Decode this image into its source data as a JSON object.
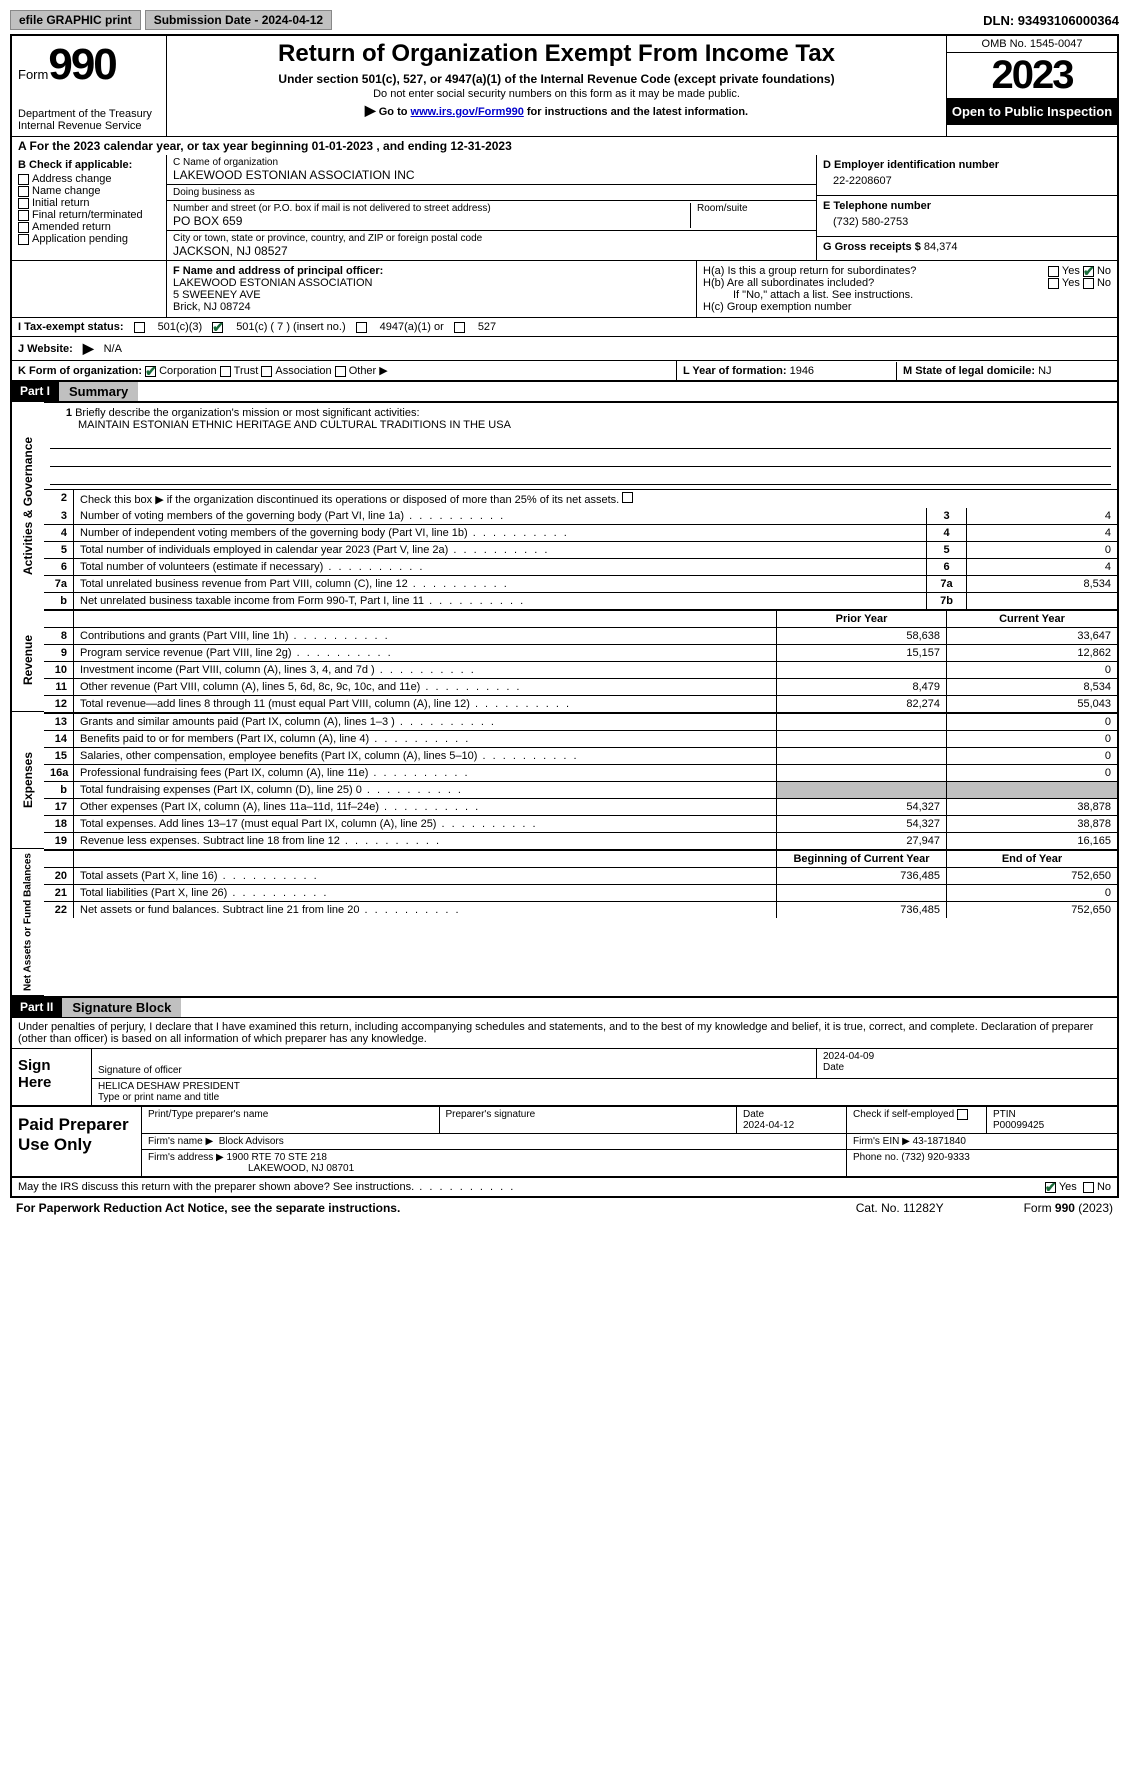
{
  "topbar": {
    "efile": "efile GRAPHIC print",
    "submission": "Submission Date - 2024-04-12",
    "dln": "DLN: 93493106000364"
  },
  "header": {
    "form_label": "Form",
    "form_num": "990",
    "dept": "Department of the Treasury\nInternal Revenue Service",
    "title": "Return of Organization Exempt From Income Tax",
    "sub": "Under section 501(c), 527, or 4947(a)(1) of the Internal Revenue Code (except private foundations)",
    "note1": "Do not enter social security numbers on this form as it may be made public.",
    "note2_pre": "Go to ",
    "note2_link": "www.irs.gov/Form990",
    "note2_post": " for instructions and the latest information.",
    "omb": "OMB No. 1545-0047",
    "year": "2023",
    "open": "Open to Public Inspection"
  },
  "sectionA": "A For the 2023 calendar year, or tax year beginning 01-01-2023    , and ending 12-31-2023",
  "boxB": {
    "hdr": "B Check if applicable:",
    "items": [
      "Address change",
      "Name change",
      "Initial return",
      "Final return/terminated",
      "Amended return",
      "Application pending"
    ]
  },
  "boxC": {
    "name_lbl": "C Name of organization",
    "name": "LAKEWOOD ESTONIAN ASSOCIATION INC",
    "dba_lbl": "Doing business as",
    "dba": "",
    "addr_lbl": "Number and street (or P.O. box if mail is not delivered to street address)",
    "room_lbl": "Room/suite",
    "addr": "PO BOX 659",
    "city_lbl": "City or town, state or province, country, and ZIP or foreign postal code",
    "city": "JACKSON, NJ  08527"
  },
  "boxD": {
    "lbl": "D Employer identification number",
    "val": "22-2208607"
  },
  "boxE": {
    "lbl": "E Telephone number",
    "val": "(732) 580-2753"
  },
  "boxG": {
    "lbl": "G Gross receipts $",
    "val": "84,374"
  },
  "boxF": {
    "lbl": "F  Name and address of principal officer:",
    "name": "LAKEWOOD ESTONIAN ASSOCIATION",
    "addr1": "5 SWEENEY AVE",
    "addr2": "Brick, NJ  08724"
  },
  "boxH": {
    "a": "H(a)  Is this a group return for subordinates?",
    "b": "H(b)  Are all subordinates included?",
    "b_note": "If \"No,\" attach a list. See instructions.",
    "c": "H(c)  Group exemption number ",
    "yes": "Yes",
    "no": "No"
  },
  "boxI": {
    "lbl": "I   Tax-exempt status:",
    "c3": "501(c)(3)",
    "c": "501(c) ( 7 ) (insert no.)",
    "a1": "4947(a)(1) or",
    "s527": "527"
  },
  "boxJ": {
    "lbl": "J   Website:",
    "arrow": "▶",
    "val": "N/A"
  },
  "boxK": {
    "lbl": "K Form of organization:",
    "corp": "Corporation",
    "trust": "Trust",
    "assoc": "Association",
    "other": "Other ▶"
  },
  "boxL": {
    "lbl": "L Year of formation:",
    "val": "1946"
  },
  "boxM": {
    "lbl": "M State of legal domicile:",
    "val": "NJ"
  },
  "part1": {
    "num": "Part I",
    "title": "Summary"
  },
  "gov": {
    "label": "Activities & Governance",
    "l1": "Briefly describe the organization's mission or most significant activities:",
    "mission": "MAINTAIN ESTONIAN ETHNIC HERITAGE AND CULTURAL TRADITIONS IN THE USA",
    "l2": "Check this box ▶          if the organization discontinued its operations or disposed of more than 25% of its net assets.",
    "lines": [
      {
        "n": "3",
        "d": "Number of voting members of the governing body (Part VI, line 1a)",
        "box": "3",
        "v": "4"
      },
      {
        "n": "4",
        "d": "Number of independent voting members of the governing body (Part VI, line 1b)",
        "box": "4",
        "v": "4"
      },
      {
        "n": "5",
        "d": "Total number of individuals employed in calendar year 2023 (Part V, line 2a)",
        "box": "5",
        "v": "0"
      },
      {
        "n": "6",
        "d": "Total number of volunteers (estimate if necessary)",
        "box": "6",
        "v": "4"
      },
      {
        "n": "7a",
        "d": "Total unrelated business revenue from Part VIII, column (C), line 12",
        "box": "7a",
        "v": "8,534"
      },
      {
        "n": "b",
        "d": "Net unrelated business taxable income from Form 990-T, Part I, line 11",
        "box": "7b",
        "v": ""
      }
    ]
  },
  "rev": {
    "label": "Revenue",
    "hdr_prior": "Prior Year",
    "hdr_curr": "Current Year",
    "lines": [
      {
        "n": "8",
        "d": "Contributions and grants (Part VIII, line 1h)",
        "p": "58,638",
        "c": "33,647"
      },
      {
        "n": "9",
        "d": "Program service revenue (Part VIII, line 2g)",
        "p": "15,157",
        "c": "12,862"
      },
      {
        "n": "10",
        "d": "Investment income (Part VIII, column (A), lines 3, 4, and 7d )",
        "p": "",
        "c": "0"
      },
      {
        "n": "11",
        "d": "Other revenue (Part VIII, column (A), lines 5, 6d, 8c, 9c, 10c, and 11e)",
        "p": "8,479",
        "c": "8,534"
      },
      {
        "n": "12",
        "d": "Total revenue—add lines 8 through 11 (must equal Part VIII, column (A), line 12)",
        "p": "82,274",
        "c": "55,043"
      }
    ]
  },
  "exp": {
    "label": "Expenses",
    "lines": [
      {
        "n": "13",
        "d": "Grants and similar amounts paid (Part IX, column (A), lines 1–3 )",
        "p": "",
        "c": "0"
      },
      {
        "n": "14",
        "d": "Benefits paid to or for members (Part IX, column (A), line 4)",
        "p": "",
        "c": "0"
      },
      {
        "n": "15",
        "d": "Salaries, other compensation, employee benefits (Part IX, column (A), lines 5–10)",
        "p": "",
        "c": "0"
      },
      {
        "n": "16a",
        "d": "Professional fundraising fees (Part IX, column (A), line 11e)",
        "p": "",
        "c": "0"
      },
      {
        "n": "b",
        "d": "Total fundraising expenses (Part IX, column (D), line 25) 0",
        "p": "SHADE",
        "c": "SHADE"
      },
      {
        "n": "17",
        "d": "Other expenses (Part IX, column (A), lines 11a–11d, 11f–24e)",
        "p": "54,327",
        "c": "38,878"
      },
      {
        "n": "18",
        "d": "Total expenses. Add lines 13–17 (must equal Part IX, column (A), line 25)",
        "p": "54,327",
        "c": "38,878"
      },
      {
        "n": "19",
        "d": "Revenue less expenses. Subtract line 18 from line 12",
        "p": "27,947",
        "c": "16,165"
      }
    ]
  },
  "net": {
    "label": "Net Assets or Fund Balances",
    "hdr_begin": "Beginning of Current Year",
    "hdr_end": "End of Year",
    "lines": [
      {
        "n": "20",
        "d": "Total assets (Part X, line 16)",
        "p": "736,485",
        "c": "752,650"
      },
      {
        "n": "21",
        "d": "Total liabilities (Part X, line 26)",
        "p": "",
        "c": "0"
      },
      {
        "n": "22",
        "d": "Net assets or fund balances. Subtract line 21 from line 20",
        "p": "736,485",
        "c": "752,650"
      }
    ]
  },
  "part2": {
    "num": "Part II",
    "title": "Signature Block"
  },
  "perjury": "Under penalties of perjury, I declare that I have examined this return, including accompanying schedules and statements, and to the best of my knowledge and belief, it is true, correct, and complete. Declaration of preparer (other than officer) is based on all information of which preparer has any knowledge.",
  "sign": {
    "lbl": "Sign Here",
    "sig_lbl": "Signature of officer",
    "date_lbl": "Date",
    "date": "2024-04-09",
    "name": "HELICA DESHAW PRESIDENT",
    "type_lbl": "Type or print name and title"
  },
  "prep": {
    "lbl": "Paid Preparer Use Only",
    "c1": "Print/Type preparer's name",
    "c2": "Preparer's signature",
    "c3_lbl": "Date",
    "c3": "2024-04-12",
    "c4": "Check          if self-employed",
    "c5_lbl": "PTIN",
    "c5": "P00099425",
    "firm_lbl": "Firm's name    ▶",
    "firm": "Block Advisors",
    "ein_lbl": "Firm's EIN ▶",
    "ein": "43-1871840",
    "addr_lbl": "Firm's address ▶",
    "addr1": "1900 RTE 70 STE 218",
    "addr2": "LAKEWOOD, NJ  08701",
    "phone_lbl": "Phone no.",
    "phone": "(732) 920-9333"
  },
  "discuss": {
    "q": "May the IRS discuss this return with the preparer shown above? See instructions.",
    "yes": "Yes",
    "no": "No"
  },
  "footer": {
    "pra": "For Paperwork Reduction Act Notice, see the separate instructions.",
    "cat": "Cat. No. 11282Y",
    "form": "Form 990 (2023)"
  }
}
